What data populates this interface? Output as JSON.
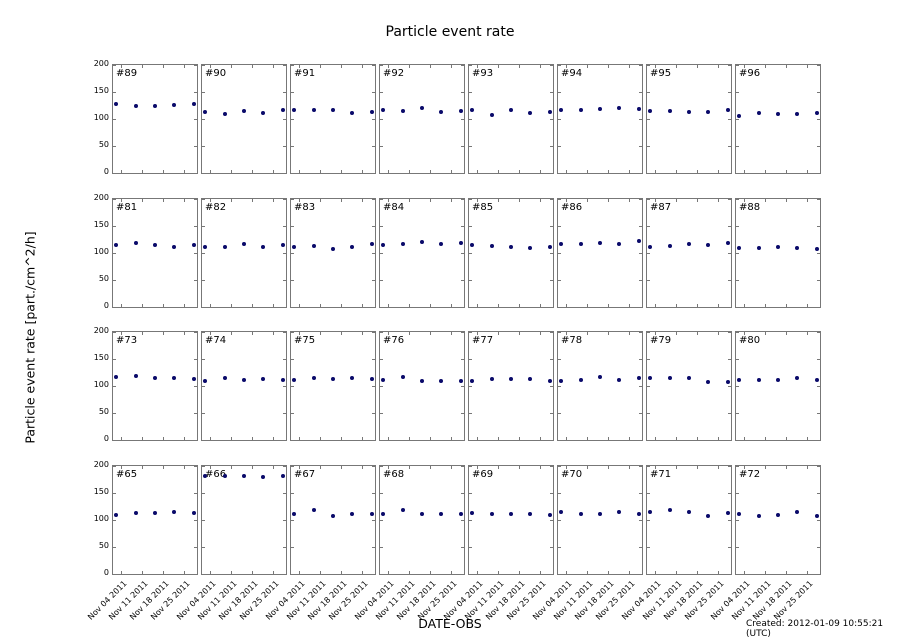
{
  "title": "Particle event rate",
  "ylabel": "Particle event rate [part./cm^2/h]",
  "xlabel": "DATE-OBS",
  "created": "Created: 2012-01-09 10:55:21 (UTC)",
  "chart_data": {
    "type": "scatter",
    "title": "Particle event rate",
    "xlabel": "DATE-OBS",
    "ylabel": "Particle event rate [part./cm^2/h]",
    "ylim": [
      0,
      200
    ],
    "yticks": [
      0,
      50,
      100,
      150,
      200
    ],
    "xticks": [
      "Nov 04 2011",
      "Nov 11 2011",
      "Nov 18 2011",
      "Nov 25 2011"
    ],
    "point_color": "#0a0a6a",
    "x_positions": [
      0.03,
      0.27,
      0.5,
      0.73,
      0.97
    ],
    "layout": {
      "rows": 4,
      "cols": 8
    },
    "panels": [
      {
        "label": "#89",
        "values": [
          127,
          125,
          125,
          126,
          127
        ]
      },
      {
        "label": "#90",
        "values": [
          113,
          110,
          115,
          112,
          117
        ]
      },
      {
        "label": "#91",
        "values": [
          116,
          116,
          116,
          112,
          113
        ]
      },
      {
        "label": "#92",
        "values": [
          116,
          114,
          120,
          113,
          115
        ]
      },
      {
        "label": "#93",
        "values": [
          116,
          108,
          116,
          112,
          113
        ]
      },
      {
        "label": "#94",
        "values": [
          116,
          117,
          118,
          121,
          118
        ]
      },
      {
        "label": "#95",
        "values": [
          115,
          115,
          113,
          113,
          117
        ]
      },
      {
        "label": "#96",
        "values": [
          106,
          111,
          110,
          110,
          112
        ]
      },
      {
        "label": "#81",
        "values": [
          114,
          118,
          115,
          112,
          115
        ]
      },
      {
        "label": "#82",
        "values": [
          111,
          111,
          116,
          111,
          115
        ]
      },
      {
        "label": "#83",
        "values": [
          111,
          113,
          108,
          111,
          117
        ]
      },
      {
        "label": "#84",
        "values": [
          114,
          117,
          121,
          117,
          119
        ]
      },
      {
        "label": "#85",
        "values": [
          114,
          113,
          111,
          110,
          111
        ]
      },
      {
        "label": "#86",
        "values": [
          116,
          117,
          119,
          117,
          122
        ]
      },
      {
        "label": "#87",
        "values": [
          112,
          113,
          116,
          115,
          119
        ]
      },
      {
        "label": "#88",
        "values": [
          109,
          109,
          111,
          110,
          108
        ]
      },
      {
        "label": "#73",
        "values": [
          116,
          118,
          115,
          115,
          113
        ]
      },
      {
        "label": "#74",
        "values": [
          109,
          114,
          112,
          113,
          112
        ]
      },
      {
        "label": "#75",
        "values": [
          111,
          114,
          113,
          114,
          113
        ]
      },
      {
        "label": "#76",
        "values": [
          111,
          117,
          109,
          109,
          110
        ]
      },
      {
        "label": "#77",
        "values": [
          110,
          113,
          113,
          113,
          109
        ]
      },
      {
        "label": "#78",
        "values": [
          109,
          112,
          116,
          112,
          114
        ]
      },
      {
        "label": "#79",
        "values": [
          114,
          115,
          114,
          108,
          107
        ]
      },
      {
        "label": "#80",
        "values": [
          112,
          111,
          111,
          114,
          111
        ]
      },
      {
        "label": "#65",
        "values": [
          109,
          113,
          113,
          115,
          113
        ]
      },
      {
        "label": "#66",
        "values": [
          181,
          181,
          182,
          180,
          182
        ]
      },
      {
        "label": "#67",
        "values": [
          112,
          119,
          107,
          112,
          111
        ]
      },
      {
        "label": "#68",
        "values": [
          111,
          119,
          112,
          111,
          112
        ]
      },
      {
        "label": "#69",
        "values": [
          113,
          112,
          111,
          111,
          110
        ]
      },
      {
        "label": "#70",
        "values": [
          115,
          112,
          112,
          114,
          112
        ]
      },
      {
        "label": "#71",
        "values": [
          114,
          118,
          114,
          107,
          113
        ]
      },
      {
        "label": "#72",
        "values": [
          112,
          108,
          110,
          114,
          108
        ]
      }
    ]
  }
}
